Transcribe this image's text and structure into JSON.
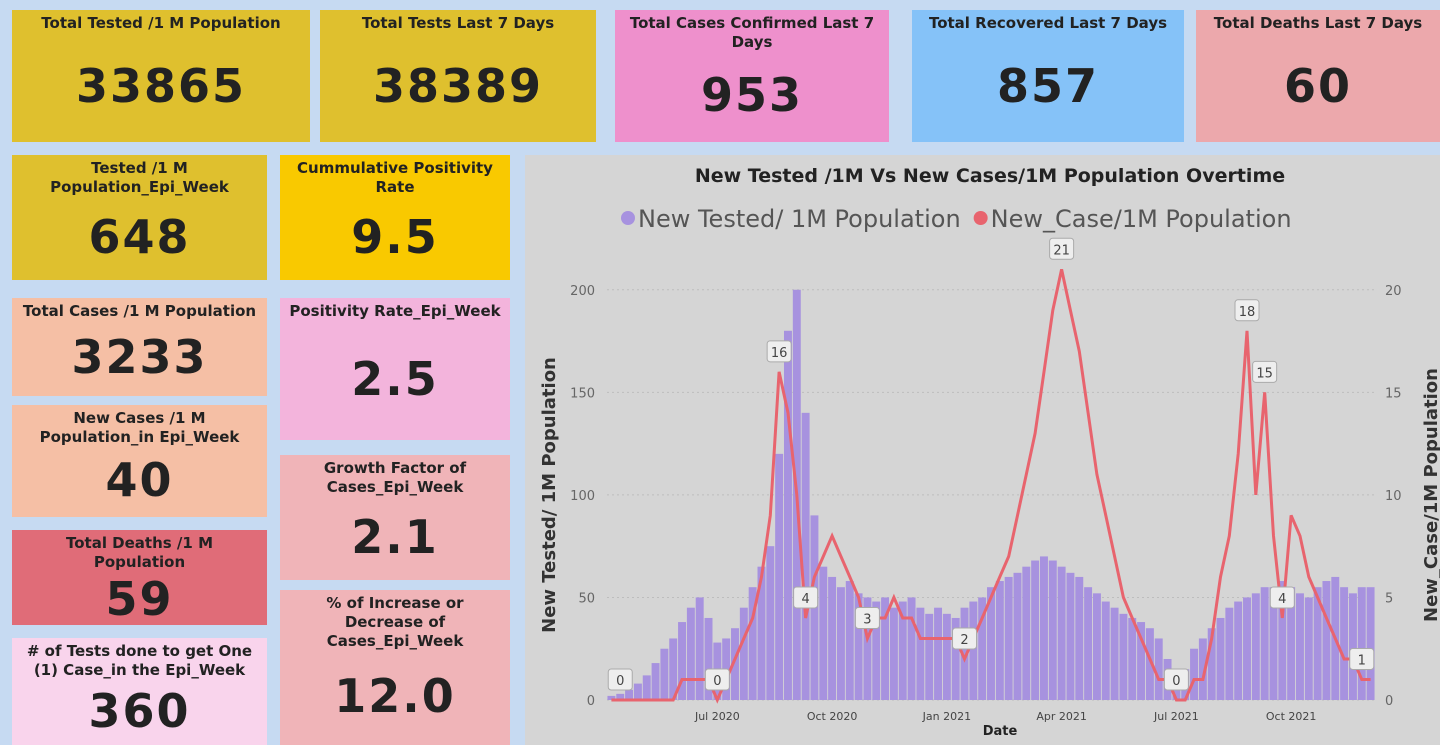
{
  "cards": [
    {
      "title": "Total Tested /1 M Population",
      "value": "33865",
      "color": "#dfc02e"
    },
    {
      "title": "Total Tests Last 7 Days",
      "value": "38389",
      "color": "#dfc02e"
    },
    {
      "title": "Total Cases Confirmed Last 7 Days",
      "value": "953",
      "color": "#ee90cc"
    },
    {
      "title": "Total Recovered Last 7 Days",
      "value": "857",
      "color": "#85c2f8"
    },
    {
      "title": "Total Deaths Last 7 Days",
      "value": "60",
      "color": "#eca8ac"
    },
    {
      "title": "Tested /1 M Population_Epi_Week",
      "value": "648",
      "color": "#dfc02e"
    },
    {
      "title": "Cummulative Positivity Rate",
      "value": "9.5",
      "color": "#f9c900"
    },
    {
      "title": "Total Cases /1 M Population",
      "value": "3233",
      "color": "#f5bfa5"
    },
    {
      "title": "Positivity Rate_Epi_Week",
      "value": "2.5",
      "color": "#f3b4dc"
    },
    {
      "title": "New Cases /1 M Population_in Epi_Week",
      "value": "40",
      "color": "#f5bfa5"
    },
    {
      "title": "Growth Factor of Cases_Epi_Week",
      "value": "2.1",
      "color": "#f0b4b8"
    },
    {
      "title": "Total Deaths /1 M Population",
      "value": "59",
      "color": "#e06c78"
    },
    {
      "title": "% of Increase or Decrease of Cases_Epi_Week",
      "value": "12.0",
      "color": "#f0b4b8"
    },
    {
      "title": "# of Tests done to get One (1) Case_in the Epi_Week",
      "value": "360",
      "color": "#f9d4ec"
    }
  ],
  "chart_data": {
    "type": "bar_line",
    "title": "New Tested /1M Vs New Cases/1M Population Overtime",
    "x_label": "Date",
    "y_label": "New Tested/ 1M Population",
    "y2_label": "New_Case/1M Population",
    "categories": [
      null,
      null,
      null,
      null,
      null,
      null,
      null,
      null,
      null,
      null,
      null,
      null,
      "Jul 2020",
      null,
      null,
      null,
      null,
      null,
      null,
      null,
      null,
      null,
      null,
      null,
      null,
      "Oct 2020",
      null,
      null,
      null,
      null,
      null,
      null,
      null,
      null,
      null,
      null,
      null,
      null,
      "Jan 2021",
      null,
      null,
      null,
      null,
      null,
      null,
      null,
      null,
      null,
      null,
      null,
      null,
      "Apr 2021",
      null,
      null,
      null,
      null,
      null,
      null,
      null,
      null,
      null,
      null,
      null,
      null,
      "Jul 2021",
      null,
      null,
      null,
      null,
      null,
      null,
      null,
      null,
      null,
      null,
      null,
      null,
      "Oct 2021",
      null,
      null,
      null,
      null,
      null,
      null,
      null,
      null,
      null
    ],
    "series": [
      {
        "name": "New Tested/ 1M Population",
        "type": "bar",
        "color": "#a792df",
        "values": [
          2,
          3,
          5,
          8,
          12,
          18,
          25,
          30,
          38,
          45,
          50,
          40,
          28,
          30,
          35,
          45,
          55,
          65,
          75,
          120,
          180,
          200,
          140,
          90,
          65,
          60,
          55,
          58,
          52,
          50,
          48,
          50,
          45,
          48,
          50,
          45,
          42,
          45,
          42,
          40,
          45,
          48,
          50,
          55,
          58,
          60,
          62,
          65,
          68,
          70,
          68,
          65,
          62,
          60,
          55,
          52,
          48,
          45,
          42,
          40,
          38,
          35,
          30,
          20,
          8,
          15,
          25,
          30,
          35,
          40,
          45,
          48,
          50,
          52,
          55,
          55,
          58,
          55,
          52,
          50,
          55,
          58,
          60,
          55,
          52,
          55,
          55
        ]
      },
      {
        "name": "New_Case/1M Population",
        "type": "line",
        "axis": "y2",
        "color": "#e8646e",
        "values": [
          0,
          0,
          0,
          0,
          0,
          0,
          0,
          0,
          1,
          1,
          1,
          1,
          0,
          1,
          2,
          3,
          4,
          6,
          9,
          16,
          14,
          10,
          4,
          6,
          7,
          8,
          7,
          6,
          5,
          3,
          4,
          4,
          5,
          4,
          4,
          3,
          3,
          3,
          3,
          3,
          2,
          3,
          4,
          5,
          6,
          7,
          9,
          11,
          13,
          16,
          19,
          21,
          19,
          17,
          14,
          11,
          9,
          7,
          5,
          4,
          3,
          2,
          1,
          1,
          0,
          0,
          1,
          1,
          3,
          6,
          8,
          12,
          18,
          10,
          15,
          8,
          4,
          9,
          8,
          6,
          5,
          4,
          3,
          2,
          2,
          1,
          1
        ],
        "value_labels": [
          null,
          "0",
          null,
          null,
          null,
          null,
          null,
          null,
          null,
          null,
          null,
          null,
          "0",
          null,
          null,
          null,
          null,
          null,
          null,
          "16",
          null,
          null,
          "4",
          null,
          null,
          null,
          null,
          null,
          null,
          "3",
          null,
          null,
          null,
          null,
          null,
          null,
          null,
          null,
          null,
          null,
          "2",
          null,
          null,
          null,
          null,
          null,
          null,
          null,
          null,
          null,
          null,
          "21",
          null,
          null,
          null,
          null,
          null,
          null,
          null,
          null,
          null,
          null,
          null,
          null,
          "0",
          null,
          null,
          null,
          null,
          null,
          null,
          null,
          "18",
          null,
          "15",
          null,
          "4",
          null,
          null,
          null,
          null,
          null,
          null,
          null,
          null,
          "1",
          null
        ]
      }
    ],
    "ylim": [
      0,
      215
    ],
    "yticks": [
      0,
      50,
      100,
      150,
      200
    ],
    "y2lim": [
      0,
      21.5
    ],
    "y2ticks": [
      0,
      5,
      10,
      15,
      20
    ]
  }
}
